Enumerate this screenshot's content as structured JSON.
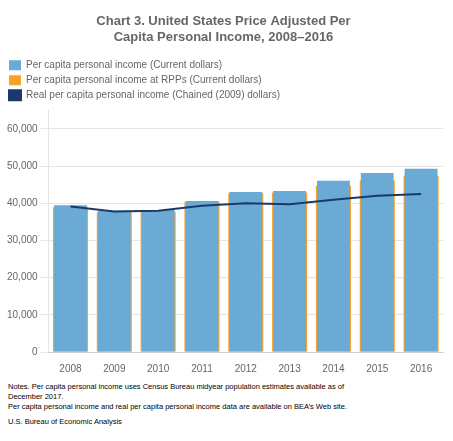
{
  "chart_data": {
    "type": "bar",
    "title": "Chart 3. United States Price Adjusted Per\nCapita Personal Income, 2008–2016",
    "categories": [
      "2008",
      "2009",
      "2010",
      "2011",
      "2012",
      "2013",
      "2014",
      "2015",
      "2016"
    ],
    "series": [
      {
        "name": "Per capita personal income (Current dollars)",
        "type": "bar",
        "color": "#6aaad4",
        "values": [
          39443,
          37985,
          38198,
          40600,
          43017,
          43304,
          46049,
          48112,
          49246
        ]
      },
      {
        "name": "Per capita personal income at RPPs (Current dollars)",
        "type": "bar",
        "color": "#f5a32a",
        "values": [
          38900,
          37500,
          37700,
          40400,
          42700,
          42900,
          44700,
          46100,
          47400
        ]
      },
      {
        "name": "Real per capita personal income (Chained (2009) dollars)",
        "type": "line",
        "color": "#1a3a6e",
        "values": [
          39100,
          37800,
          38000,
          39300,
          40000,
          39700,
          40900,
          42000,
          42500
        ]
      }
    ],
    "ylim": [
      0,
      65000
    ],
    "yticks": [
      0,
      {
        "value": 10000,
        "label": "10,000"
      },
      {
        "value": 20000,
        "label": "20,000"
      },
      {
        "value": 30000,
        "label": "30,000"
      },
      {
        "value": 40000,
        "label": "40,000"
      },
      {
        "value": 50000,
        "label": "50,000"
      },
      {
        "value": 60000,
        "label": "60,000"
      }
    ],
    "grid": true,
    "legend": "top",
    "annotations": [
      "Notes. Per capita personal income uses Census Bureau midyear population estimates available as of",
      "December 2017.",
      "Per capita personal income and real per capita personal income data are available on BEA’s Web site.",
      "U.S. Bureau of Economic Analysis"
    ]
  }
}
